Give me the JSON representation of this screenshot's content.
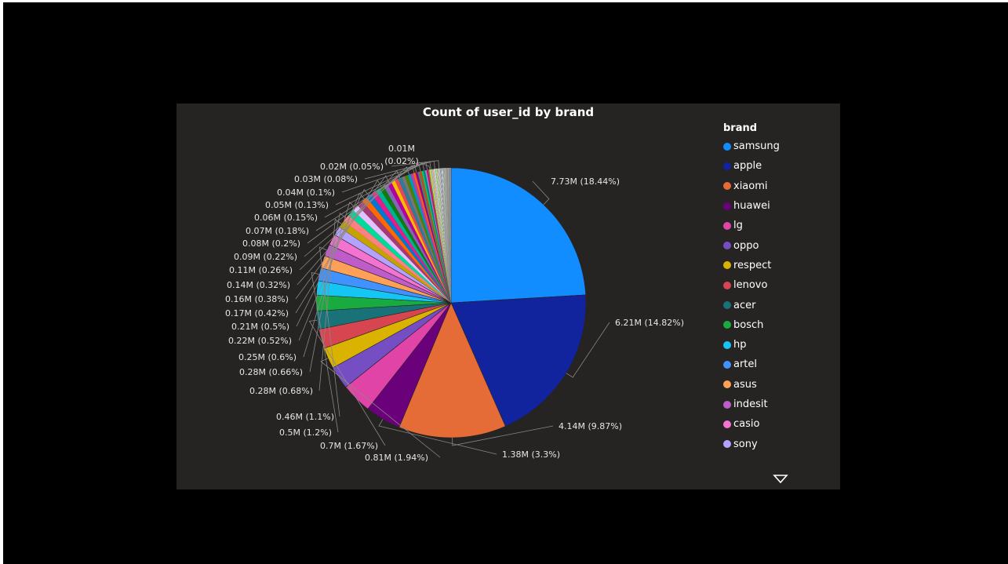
{
  "chart_data": {
    "type": "pie",
    "title": "Count of user_id by brand",
    "legend_title": "brand",
    "legend_position": "right",
    "start_angle_deg": 0,
    "direction": "clockwise",
    "slices": [
      {
        "name": "samsung",
        "value": 7.73,
        "percent": 18.44,
        "label": "7.73M (18.44%)",
        "color": "#118dff"
      },
      {
        "name": "apple",
        "value": 6.21,
        "percent": 14.82,
        "label": "6.21M (14.82%)",
        "color": "#12239e"
      },
      {
        "name": "xiaomi",
        "value": 4.14,
        "percent": 9.87,
        "label": "4.14M (9.87%)",
        "color": "#e66c37"
      },
      {
        "name": "huawei",
        "value": 1.38,
        "percent": 3.3,
        "label": "1.38M (3.3%)",
        "color": "#6b007b"
      },
      {
        "name": "lg",
        "value": 1.18,
        "percent": 2.82,
        "label": "",
        "color": "#e044a7"
      },
      {
        "name": "oppo",
        "value": 0.88,
        "percent": 2.1,
        "label": "",
        "color": "#744ec2"
      },
      {
        "name": "respect",
        "value": 0.81,
        "percent": 1.94,
        "label": "0.81M (1.94%)",
        "color": "#d9b300"
      },
      {
        "name": "lenovo",
        "value": 0.75,
        "percent": 1.79,
        "label": "",
        "color": "#d64550"
      },
      {
        "name": "acer",
        "value": 0.7,
        "percent": 1.67,
        "label": "0.7M (1.67%)",
        "color": "#197278"
      },
      {
        "name": "bosch",
        "value": 0.6,
        "percent": 1.43,
        "label": "",
        "color": "#1aab40"
      },
      {
        "name": "hp",
        "value": 0.55,
        "percent": 1.31,
        "label": "",
        "color": "#15c6f4"
      },
      {
        "name": "artel",
        "value": 0.5,
        "percent": 1.2,
        "label": "0.5M (1.2%)",
        "color": "#4092ff"
      },
      {
        "name": "asus",
        "value": 0.48,
        "percent": 1.15,
        "label": "",
        "color": "#ffa058"
      },
      {
        "name": "indesit",
        "value": 0.46,
        "percent": 1.1,
        "label": "0.46M (1.1%)",
        "color": "#be5dc9"
      },
      {
        "name": "casio",
        "value": 0.42,
        "percent": 1.0,
        "label": "",
        "color": "#f472d0"
      },
      {
        "name": "sony",
        "value": 0.35,
        "percent": 0.84,
        "label": "",
        "color": "#b5a1ff"
      },
      {
        "name": "",
        "value": 0.28,
        "percent": 0.68,
        "label": "0.28M (0.68%)",
        "color": "#c4a200"
      },
      {
        "name": "",
        "value": 0.28,
        "percent": 0.66,
        "label": "0.28M (0.66%)",
        "color": "#ff8080"
      },
      {
        "name": "",
        "value": 0.26,
        "percent": 0.62,
        "label": "",
        "color": "#00db9b"
      },
      {
        "name": "",
        "value": 0.25,
        "percent": 0.6,
        "label": "0.25M (0.6%)",
        "color": "#e2c2ff"
      },
      {
        "name": "",
        "value": 0.24,
        "percent": 0.57,
        "label": "",
        "color": "#a43b76"
      },
      {
        "name": "",
        "value": 0.22,
        "percent": 0.52,
        "label": "0.22M (0.52%)",
        "color": "#ff6a00"
      },
      {
        "name": "",
        "value": 0.21,
        "percent": 0.5,
        "label": "0.21M (0.5%)",
        "color": "#0078d4"
      },
      {
        "name": "",
        "value": 0.2,
        "percent": 0.48,
        "label": "",
        "color": "#e81a8c"
      },
      {
        "name": "",
        "value": 0.19,
        "percent": 0.45,
        "label": "",
        "color": "#00b294"
      },
      {
        "name": "",
        "value": 0.17,
        "percent": 0.42,
        "label": "0.17M (0.42%)",
        "color": "#107c10"
      },
      {
        "name": "",
        "value": 0.17,
        "percent": 0.4,
        "label": "",
        "color": "#8764b8"
      },
      {
        "name": "",
        "value": 0.16,
        "percent": 0.38,
        "label": "0.16M (0.38%)",
        "color": "#b4009e"
      },
      {
        "name": "",
        "value": 0.15,
        "percent": 0.36,
        "label": "",
        "color": "#ffb900"
      },
      {
        "name": "",
        "value": 0.14,
        "percent": 0.34,
        "label": "",
        "color": "#e74856"
      },
      {
        "name": "",
        "value": 0.14,
        "percent": 0.32,
        "label": "0.14M (0.32%)",
        "color": "#2d7d9a"
      },
      {
        "name": "",
        "value": 0.13,
        "percent": 0.3,
        "label": "",
        "color": "#7a7574"
      },
      {
        "name": "",
        "value": 0.12,
        "percent": 0.28,
        "label": "",
        "color": "#498205"
      },
      {
        "name": "",
        "value": 0.11,
        "percent": 0.26,
        "label": "0.11M (0.26%)",
        "color": "#0099bc"
      },
      {
        "name": "",
        "value": 0.1,
        "percent": 0.24,
        "label": "",
        "color": "#c239b3"
      },
      {
        "name": "",
        "value": 0.09,
        "percent": 0.22,
        "label": "0.09M (0.22%)",
        "color": "#f7630c"
      },
      {
        "name": "",
        "value": 0.085,
        "percent": 0.2,
        "label": "0.08M (0.2%)",
        "color": "#9a0089"
      },
      {
        "name": "",
        "value": 0.08,
        "percent": 0.19,
        "label": "",
        "color": "#567c73"
      },
      {
        "name": "",
        "value": 0.075,
        "percent": 0.18,
        "label": "0.07M (0.18%)",
        "color": "#ca5010"
      },
      {
        "name": "",
        "value": 0.07,
        "percent": 0.17,
        "label": "",
        "color": "#00cc6a"
      },
      {
        "name": "",
        "value": 0.065,
        "percent": 0.15,
        "label": "0.06M (0.15%)",
        "color": "#038387"
      },
      {
        "name": "",
        "value": 0.06,
        "percent": 0.14,
        "label": "",
        "color": "#8e8cd8"
      },
      {
        "name": "",
        "value": 0.055,
        "percent": 0.13,
        "label": "0.05M (0.13%)",
        "color": "#ea005e"
      },
      {
        "name": "",
        "value": 0.05,
        "percent": 0.12,
        "label": "",
        "color": "#69797e"
      },
      {
        "name": "",
        "value": 0.045,
        "percent": 0.11,
        "label": "",
        "color": "#ffd700"
      },
      {
        "name": "",
        "value": 0.042,
        "percent": 0.1,
        "label": "0.04M (0.1%)",
        "color": "#9dc3e6"
      },
      {
        "name": "",
        "value": 0.04,
        "percent": 0.095,
        "label": "",
        "color": "#a9d18e"
      },
      {
        "name": "",
        "value": 0.037,
        "percent": 0.09,
        "label": "",
        "color": "#f4b183"
      },
      {
        "name": "",
        "value": 0.035,
        "percent": 0.085,
        "label": "",
        "color": "#c9c9ff"
      },
      {
        "name": "",
        "value": 0.033,
        "percent": 0.08,
        "label": "0.03M (0.08%)",
        "color": "#d6dce5"
      },
      {
        "name": "",
        "value": 0.031,
        "percent": 0.075,
        "label": "",
        "color": "#8fd14f"
      },
      {
        "name": "",
        "value": 0.029,
        "percent": 0.07,
        "label": "",
        "color": "#ffe699"
      },
      {
        "name": "",
        "value": 0.027,
        "percent": 0.065,
        "label": "",
        "color": "#7fb3d5"
      },
      {
        "name": "",
        "value": 0.025,
        "percent": 0.06,
        "label": "",
        "color": "#c5e0b4"
      },
      {
        "name": "",
        "value": 0.023,
        "percent": 0.055,
        "label": "",
        "color": "#f8cbad"
      },
      {
        "name": "",
        "value": 0.021,
        "percent": 0.05,
        "label": "0.02M (0.05%)",
        "color": "#b4c7e7"
      },
      {
        "name": "",
        "value": 0.02,
        "percent": 0.048,
        "label": "",
        "color": "#dbdbdb"
      },
      {
        "name": "",
        "value": 0.019,
        "percent": 0.046,
        "label": "",
        "color": "#aeaaaa"
      },
      {
        "name": "",
        "value": 0.018,
        "percent": 0.044,
        "label": "",
        "color": "#9cc2e5"
      },
      {
        "name": "",
        "value": 0.017,
        "percent": 0.042,
        "label": "",
        "color": "#c9a0dc"
      },
      {
        "name": "",
        "value": 0.016,
        "percent": 0.04,
        "label": "",
        "color": "#d0e2a0"
      },
      {
        "name": "",
        "value": 0.015,
        "percent": 0.038,
        "label": "",
        "color": "#bdd7ee"
      },
      {
        "name": "",
        "value": 0.015,
        "percent": 0.036,
        "label": "",
        "color": "#e2efda"
      },
      {
        "name": "",
        "value": 0.014,
        "percent": 0.034,
        "label": "",
        "color": "#fce4d6"
      },
      {
        "name": "",
        "value": 0.014,
        "percent": 0.032,
        "label": "",
        "color": "#a6a6a6"
      },
      {
        "name": "",
        "value": 0.013,
        "percent": 0.03,
        "label": "",
        "color": "#9bc2e6"
      },
      {
        "name": "",
        "value": 0.013,
        "percent": 0.03,
        "label": "",
        "color": "#c6e0b4"
      },
      {
        "name": "",
        "value": 0.012,
        "percent": 0.029,
        "label": "",
        "color": "#ffd966"
      },
      {
        "name": "",
        "value": 0.012,
        "percent": 0.028,
        "label": "",
        "color": "#8ea9db"
      },
      {
        "name": "",
        "value": 0.011,
        "percent": 0.027,
        "label": "",
        "color": "#d9d9d9"
      },
      {
        "name": "",
        "value": 0.011,
        "percent": 0.026,
        "label": "",
        "color": "#b7dee8"
      },
      {
        "name": "",
        "value": 0.01,
        "percent": 0.025,
        "label": "",
        "color": "#ccc0da"
      },
      {
        "name": "",
        "value": 0.01,
        "percent": 0.024,
        "label": "",
        "color": "#e6b8b7"
      },
      {
        "name": "",
        "value": 0.01,
        "percent": 0.023,
        "label": "",
        "color": "#d8e4bc"
      },
      {
        "name": "",
        "value": 0.0095,
        "percent": 0.022,
        "label": "",
        "color": "#95b3d7"
      },
      {
        "name": "",
        "value": 0.009,
        "percent": 0.021,
        "label": "",
        "color": "#fabf8f"
      },
      {
        "name": "",
        "value": 0.009,
        "percent": 0.021,
        "label": "",
        "color": "#b1a0c7"
      },
      {
        "name": "",
        "value": 0.0085,
        "percent": 0.02,
        "label": "0.01M (0.02%)",
        "color": "#92cddc"
      },
      {
        "name": "",
        "value": 0.008,
        "percent": 0.019,
        "label": "",
        "color": "#c4d79b"
      },
      {
        "name": "",
        "value": 0.008,
        "percent": 0.019,
        "label": "",
        "color": "#da9694"
      },
      {
        "name": "",
        "value": 0.0075,
        "percent": 0.018,
        "label": "",
        "color": "#a6a6a6"
      },
      {
        "name": "",
        "value": 0.0075,
        "percent": 0.018,
        "label": "",
        "color": "#8db4e2"
      },
      {
        "name": "",
        "value": 0.007,
        "percent": 0.017,
        "label": "",
        "color": "#ffff99"
      },
      {
        "name": "",
        "value": 0.007,
        "percent": 0.017,
        "label": "",
        "color": "#ccffcc"
      },
      {
        "name": "",
        "value": 0.0065,
        "percent": 0.016,
        "label": "",
        "color": "#ffcc99"
      },
      {
        "name": "",
        "value": 0.0065,
        "percent": 0.016,
        "label": "",
        "color": "#99ccff"
      },
      {
        "name": "",
        "value": 0.006,
        "percent": 0.015,
        "label": "",
        "color": "#cc99ff"
      },
      {
        "name": "",
        "value": 0.006,
        "percent": 0.015,
        "label": "",
        "color": "#ffffff"
      },
      {
        "name": "",
        "value": 0.006,
        "percent": 0.014,
        "label": "",
        "color": "#969696"
      },
      {
        "name": "",
        "value": 0.0055,
        "percent": 0.014,
        "label": "",
        "color": "#bfbfbf"
      },
      {
        "name": "",
        "value": 0.0055,
        "percent": 0.013,
        "label": "",
        "color": "#7f7f7f"
      },
      {
        "name": "",
        "value": 0.005,
        "percent": 0.013,
        "label": "",
        "color": "#c0c0c0"
      },
      {
        "name": "",
        "value": 0.005,
        "percent": 0.012,
        "label": "",
        "color": "#eeeeee"
      },
      {
        "name": "",
        "value": 0.005,
        "percent": 0.012,
        "label": "",
        "color": "#b2b2b2"
      },
      {
        "name": "",
        "value": 0.0045,
        "percent": 0.011,
        "label": "",
        "color": "#d4d4d4"
      },
      {
        "name": "",
        "value": 0.0045,
        "percent": 0.011,
        "label": "",
        "color": "#8c8c8c"
      },
      {
        "name": "",
        "value": 0.004,
        "percent": 0.01,
        "label": "",
        "color": "#a0a0a0"
      },
      {
        "name": "",
        "value": 0.004,
        "percent": 0.01,
        "label": "",
        "color": "#e0e0e0"
      },
      {
        "name": "",
        "value": 0.004,
        "percent": 0.01,
        "label": "",
        "color": "#c8c8c8"
      },
      {
        "name": "",
        "value": 0.0035,
        "percent": 0.009,
        "label": "",
        "color": "#b0b0b0"
      },
      {
        "name": "",
        "value": 0.0035,
        "percent": 0.009,
        "label": "",
        "color": "#d0d0d0"
      },
      {
        "name": "",
        "value": 0.003,
        "percent": 0.008,
        "label": "",
        "color": "#9a9a9a"
      },
      {
        "name": "",
        "value": 0.003,
        "percent": 0.008,
        "label": "",
        "color": "#e8e8e8"
      },
      {
        "name": "",
        "value": 0.003,
        "percent": 0.007,
        "label": "",
        "color": "#bcbcbc"
      },
      {
        "name": "",
        "value": 0.0025,
        "percent": 0.006,
        "label": "",
        "color": "#a8a8a8"
      },
      {
        "name": "",
        "value": 0.0025,
        "percent": 0.006,
        "label": "",
        "color": "#dcdcdc"
      },
      {
        "name": "",
        "value": 0.002,
        "percent": 0.005,
        "label": "",
        "color": "#c4c4c4"
      },
      {
        "name": "",
        "value": 0.002,
        "percent": 0.005,
        "label": "",
        "color": "#949494"
      },
      {
        "name": "",
        "value": 0.002,
        "percent": 0.005,
        "label": "",
        "color": "#f0f0f0"
      },
      {
        "name": "",
        "value": 0.0015,
        "percent": 0.004,
        "label": "",
        "color": "#b8b8b8"
      },
      {
        "name": "",
        "value": 0.0015,
        "percent": 0.004,
        "label": "",
        "color": "#d8d8d8"
      },
      {
        "name": "",
        "value": 0.001,
        "percent": 0.003,
        "label": "",
        "color": "#acacac"
      },
      {
        "name": "",
        "value": 0.001,
        "percent": 0.003,
        "label": "",
        "color": "#cccccc"
      },
      {
        "name": "",
        "value": 0.001,
        "percent": 0.002,
        "label": "",
        "color": "#e4e4e4"
      }
    ],
    "legend_visible": [
      "samsung",
      "apple",
      "xiaomi",
      "huawei",
      "lg",
      "oppo",
      "respect",
      "lenovo",
      "acer",
      "bosch",
      "hp",
      "artel",
      "asus",
      "indesit",
      "casio",
      "sony"
    ]
  },
  "colors": {
    "page_background": "#000000",
    "visual_background": "#252423",
    "text": "#ffffff",
    "label_text": "#e6e6e6",
    "leader_line": "#8a8886",
    "slice_separator": "#252423"
  },
  "legend": {
    "more_icon": "caret-down-icon"
  }
}
